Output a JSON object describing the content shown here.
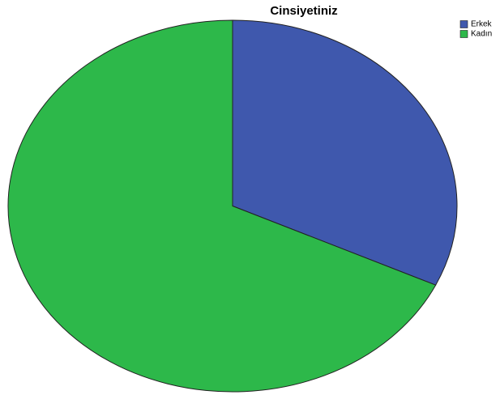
{
  "chart_data": {
    "type": "pie",
    "title": "Cinsiyetiniz",
    "categories": [
      "Erkek",
      "Kadın"
    ],
    "values": [
      32,
      68
    ],
    "colors": [
      "#3f58ad",
      "#2db84a"
    ],
    "legend": "top-right"
  }
}
